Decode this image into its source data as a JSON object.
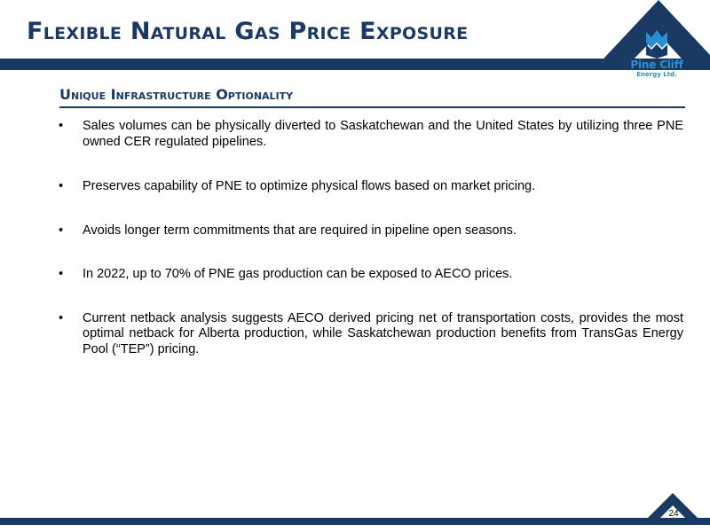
{
  "header": {
    "title": "Flexible Natural Gas Price Exposure",
    "subtitle": "Unique Infrastructure Optionality"
  },
  "logo": {
    "name": "Pine Cliff",
    "sub": "Energy Ltd."
  },
  "bullets": [
    {
      "glyph": "•",
      "text": "Sales volumes can be physically diverted to Saskatchewan and the United States by utilizing three PNE owned CER regulated pipelines."
    },
    {
      "glyph": "•",
      "text": "Preserves capability of PNE to optimize physical flows based on market pricing."
    },
    {
      "glyph": "•",
      "text": "Avoids longer term commitments that are required in pipeline open seasons."
    },
    {
      "glyph": "•",
      "text": "In 2022, up to 70% of PNE gas production can be exposed to AECO prices."
    },
    {
      "glyph": "•",
      "text": "Current netback analysis suggests AECO derived pricing net of transportation costs, provides the most optimal netback for Alberta production, while Saskatchewan production benefits from TransGas Energy Pool (“TEP”) pricing."
    }
  ],
  "footer": {
    "page_number": "24"
  },
  "colors": {
    "navy": "#1b3a63",
    "logo_blue": "#2a8fd0"
  }
}
